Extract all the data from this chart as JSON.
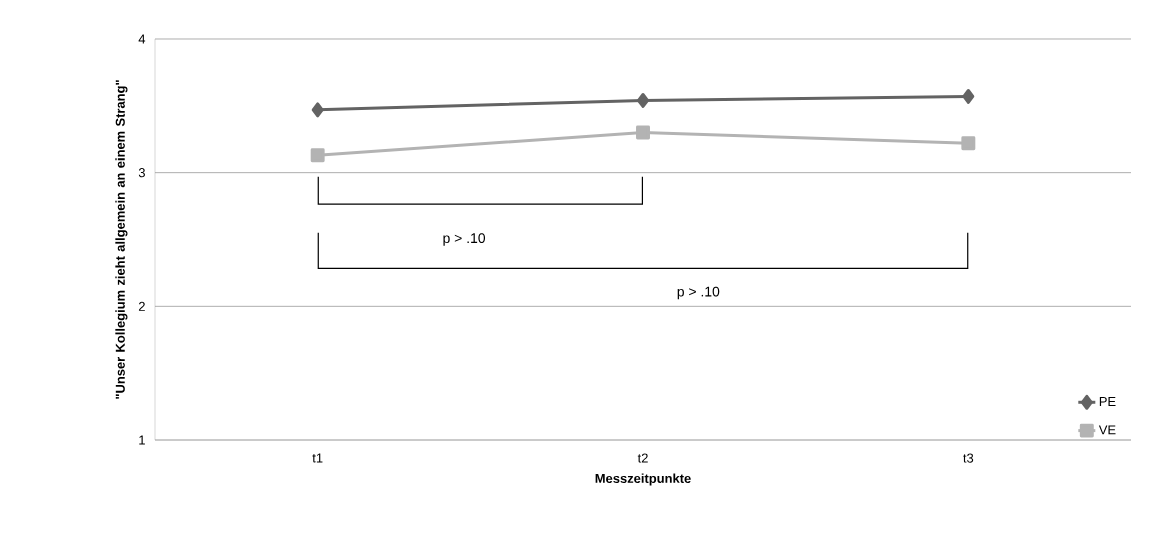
{
  "chart_data": {
    "type": "line",
    "xlabel": "Messzeitpunkte",
    "ylabel": "\"Unser Kollegium zieht allgemein an einem Strang\"",
    "categories": [
      "t1",
      "t2",
      "t3"
    ],
    "series": [
      {
        "name": "PE",
        "color": "#636363",
        "values": [
          3.47,
          3.54,
          3.57
        ],
        "marker": "diamond"
      },
      {
        "name": "VE",
        "color": "#b3b3b3",
        "values": [
          3.13,
          3.3,
          3.22
        ],
        "marker": "square"
      }
    ],
    "ylim": [
      1,
      4
    ],
    "yticks": [
      1,
      2,
      3,
      4
    ],
    "grid": "y",
    "legend": "bottom right",
    "line_style": "solid",
    "annotations": [
      "p > .10",
      "p > .10"
    ]
  }
}
